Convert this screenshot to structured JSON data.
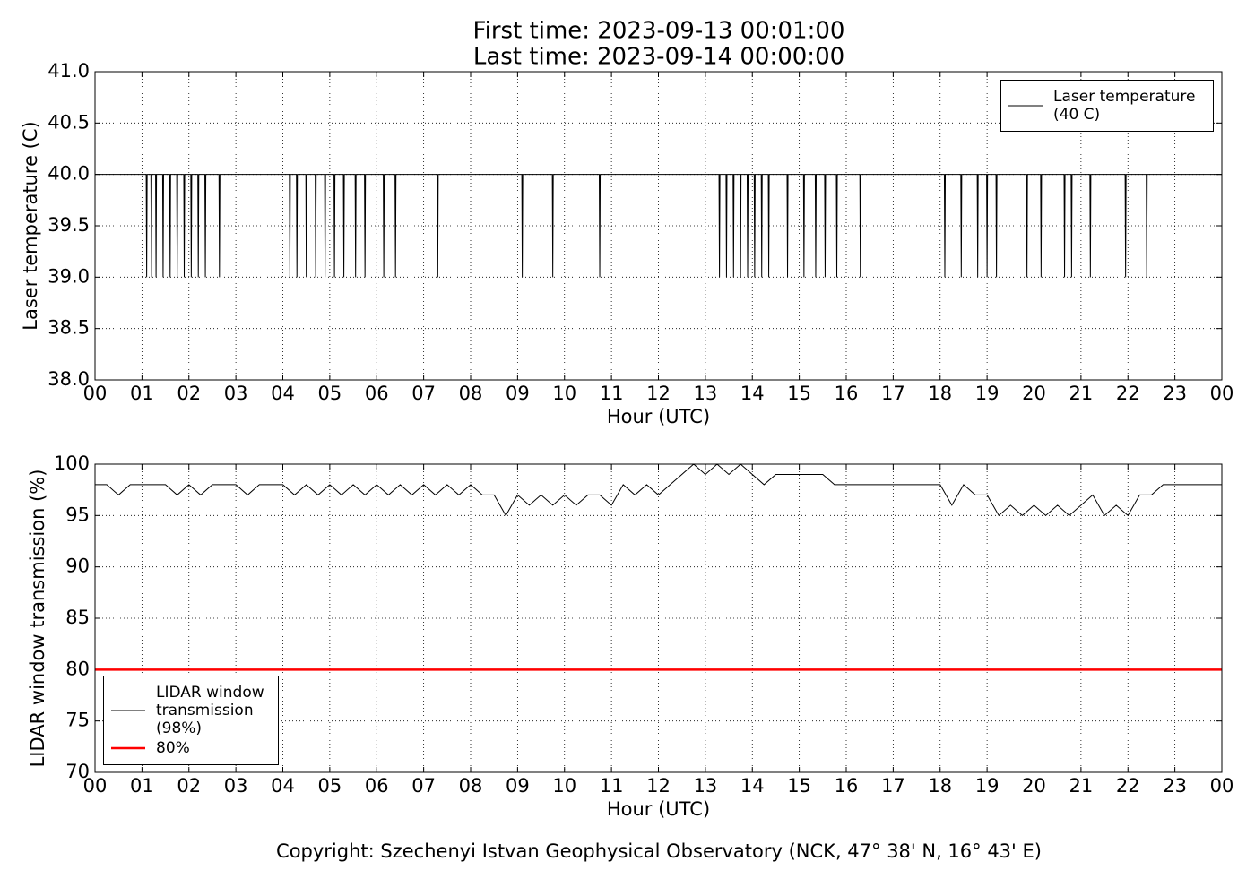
{
  "title": [
    "First time: 2023-09-13 00:01:00",
    "Last time: 2023-09-14 00:00:00"
  ],
  "footer": "Copyright: Szechenyi Istvan Geophysical Observatory (NCK, 47° 38' N, 16° 43' E)",
  "chart_data": [
    {
      "type": "line",
      "ylabel": "Laser temperature (C)",
      "xlabel": "Hour (UTC)",
      "xlim": [
        0,
        24
      ],
      "ylim": [
        38,
        41
      ],
      "grid": true,
      "legend": "upper right",
      "xticks": [
        {
          "value": 0,
          "label": "00"
        },
        {
          "value": 1,
          "label": "01"
        },
        {
          "value": 2,
          "label": "02"
        },
        {
          "value": 3,
          "label": "03"
        },
        {
          "value": 4,
          "label": "04"
        },
        {
          "value": 5,
          "label": "05"
        },
        {
          "value": 6,
          "label": "06"
        },
        {
          "value": 7,
          "label": "07"
        },
        {
          "value": 8,
          "label": "08"
        },
        {
          "value": 9,
          "label": "09"
        },
        {
          "value": 10,
          "label": "10"
        },
        {
          "value": 11,
          "label": "11"
        },
        {
          "value": 12,
          "label": "12"
        },
        {
          "value": 13,
          "label": "13"
        },
        {
          "value": 14,
          "label": "14"
        },
        {
          "value": 15,
          "label": "15"
        },
        {
          "value": 16,
          "label": "16"
        },
        {
          "value": 17,
          "label": "17"
        },
        {
          "value": 18,
          "label": "18"
        },
        {
          "value": 19,
          "label": "19"
        },
        {
          "value": 20,
          "label": "20"
        },
        {
          "value": 21,
          "label": "21"
        },
        {
          "value": 22,
          "label": "22"
        },
        {
          "value": 23,
          "label": "23"
        },
        {
          "value": 24,
          "label": "00"
        }
      ],
      "yticks": [
        {
          "value": 38,
          "label": "38.0"
        },
        38.5,
        {
          "value": 39,
          "label": "39.0"
        },
        39.5,
        {
          "value": 40,
          "label": "40.0"
        },
        40.5,
        {
          "value": 41,
          "label": "41.0"
        }
      ],
      "series": [
        {
          "name": "Laser temperature (40 C)",
          "color": "#000000",
          "width": 1,
          "x": [
            0,
            1.09,
            1.1,
            1.11,
            1.19,
            1.2,
            1.21,
            1.29,
            1.3,
            1.31,
            1.44,
            1.45,
            1.46,
            1.59,
            1.6,
            1.61,
            1.74,
            1.75,
            1.76,
            1.89,
            1.9,
            1.91,
            2.04,
            2.05,
            2.06,
            2.19,
            2.2,
            2.21,
            2.34,
            2.35,
            2.36,
            2.64,
            2.65,
            2.66,
            4.14,
            4.15,
            4.16,
            4.29,
            4.3,
            4.31,
            4.49,
            4.5,
            4.51,
            4.69,
            4.7,
            4.71,
            4.89,
            4.9,
            4.91,
            5.09,
            5.1,
            5.11,
            5.29,
            5.3,
            5.31,
            5.54,
            5.55,
            5.56,
            5.74,
            5.75,
            5.76,
            6.14,
            6.15,
            6.16,
            6.39,
            6.4,
            6.41,
            7.29,
            7.3,
            7.31,
            9.09,
            9.1,
            9.11,
            9.74,
            9.75,
            9.76,
            10.74,
            10.75,
            10.76,
            13.29,
            13.3,
            13.31,
            13.44,
            13.45,
            13.46,
            13.59,
            13.6,
            13.61,
            13.74,
            13.75,
            13.76,
            13.89,
            13.9,
            13.91,
            14.04,
            14.05,
            14.06,
            14.19,
            14.2,
            14.21,
            14.34,
            14.35,
            14.36,
            14.74,
            14.75,
            14.76,
            15.09,
            15.1,
            15.11,
            15.34,
            15.35,
            15.36,
            15.54,
            15.55,
            15.56,
            15.79,
            15.8,
            15.81,
            16.29,
            16.3,
            16.31,
            18.09,
            18.1,
            18.11,
            18.44,
            18.45,
            18.46,
            18.79,
            18.8,
            18.81,
            18.99,
            19,
            19.01,
            19.19,
            19.2,
            19.21,
            19.84,
            19.85,
            19.86,
            20.14,
            20.15,
            20.16,
            20.64,
            20.65,
            20.66,
            20.79,
            20.8,
            20.81,
            21.19,
            21.2,
            21.21,
            21.94,
            21.95,
            21.96,
            22.39,
            22.4,
            22.41,
            24
          ],
          "values": [
            40,
            40,
            39,
            40,
            40,
            39,
            40,
            40,
            39,
            40,
            40,
            39,
            40,
            40,
            39,
            40,
            40,
            39,
            40,
            40,
            39,
            40,
            40,
            39,
            40,
            40,
            39,
            40,
            40,
            39,
            40,
            40,
            39,
            40,
            40,
            39,
            40,
            40,
            39,
            40,
            40,
            39,
            40,
            40,
            39,
            40,
            40,
            39,
            40,
            40,
            39,
            40,
            40,
            39,
            40,
            40,
            39,
            40,
            40,
            39,
            40,
            40,
            39,
            40,
            40,
            39,
            40,
            40,
            39,
            40,
            40,
            39,
            40,
            40,
            39,
            40,
            40,
            39,
            40,
            40,
            39,
            40,
            40,
            39,
            40,
            40,
            39,
            40,
            40,
            39,
            40,
            40,
            39,
            40,
            40,
            39,
            40,
            40,
            39,
            40,
            40,
            39,
            40,
            40,
            39,
            40,
            40,
            39,
            40,
            40,
            39,
            40,
            40,
            39,
            40,
            40,
            39,
            40,
            40,
            39,
            40,
            40,
            39,
            40,
            40,
            39,
            40,
            40,
            39,
            40,
            40,
            39,
            40,
            40,
            39,
            40,
            40,
            39,
            40,
            40,
            39,
            40,
            40,
            39,
            40,
            40,
            39,
            40,
            40,
            39,
            40,
            40,
            39,
            40,
            40,
            39,
            40,
            40
          ]
        }
      ]
    },
    {
      "type": "line",
      "ylabel": "LIDAR window transmission (%)",
      "xlabel": "Hour (UTC)",
      "xlim": [
        0,
        24
      ],
      "ylim": [
        70,
        100
      ],
      "grid": true,
      "legend": "lower left",
      "xticks": [
        {
          "value": 0,
          "label": "00"
        },
        {
          "value": 1,
          "label": "01"
        },
        {
          "value": 2,
          "label": "02"
        },
        {
          "value": 3,
          "label": "03"
        },
        {
          "value": 4,
          "label": "04"
        },
        {
          "value": 5,
          "label": "05"
        },
        {
          "value": 6,
          "label": "06"
        },
        {
          "value": 7,
          "label": "07"
        },
        {
          "value": 8,
          "label": "08"
        },
        {
          "value": 9,
          "label": "09"
        },
        {
          "value": 10,
          "label": "10"
        },
        {
          "value": 11,
          "label": "11"
        },
        {
          "value": 12,
          "label": "12"
        },
        {
          "value": 13,
          "label": "13"
        },
        {
          "value": 14,
          "label": "14"
        },
        {
          "value": 15,
          "label": "15"
        },
        {
          "value": 16,
          "label": "16"
        },
        {
          "value": 17,
          "label": "17"
        },
        {
          "value": 18,
          "label": "18"
        },
        {
          "value": 19,
          "label": "19"
        },
        {
          "value": 20,
          "label": "20"
        },
        {
          "value": 21,
          "label": "21"
        },
        {
          "value": 22,
          "label": "22"
        },
        {
          "value": 23,
          "label": "23"
        },
        {
          "value": 24,
          "label": "00"
        }
      ],
      "yticks": [
        70,
        75,
        80,
        85,
        90,
        95,
        100
      ],
      "series": [
        {
          "name": "LIDAR window transmission (98%)",
          "color": "#000000",
          "width": 1,
          "x": [
            0,
            0.25,
            0.5,
            0.75,
            1,
            1.25,
            1.5,
            1.75,
            2,
            2.25,
            2.5,
            2.75,
            3,
            3.25,
            3.5,
            3.75,
            4,
            4.25,
            4.5,
            4.75,
            5,
            5.25,
            5.5,
            5.75,
            6,
            6.25,
            6.5,
            6.75,
            7,
            7.25,
            7.5,
            7.75,
            8,
            8.25,
            8.5,
            8.75,
            9,
            9.25,
            9.5,
            9.75,
            10,
            10.25,
            10.5,
            10.75,
            11,
            11.25,
            11.5,
            11.75,
            12,
            12.25,
            12.5,
            12.75,
            13,
            13.25,
            13.5,
            13.75,
            14,
            14.25,
            14.5,
            14.75,
            15,
            15.25,
            15.5,
            15.75,
            16,
            16.25,
            16.5,
            16.75,
            17,
            17.25,
            17.5,
            17.75,
            18,
            18.25,
            18.5,
            18.75,
            19,
            19.25,
            19.5,
            19.75,
            20,
            20.25,
            20.5,
            20.75,
            21,
            21.25,
            21.5,
            21.75,
            22,
            22.25,
            22.5,
            22.75,
            23,
            23.25,
            23.5,
            23.75,
            24
          ],
          "values": [
            98,
            98,
            97,
            98,
            98,
            98,
            98,
            97,
            98,
            97,
            98,
            98,
            98,
            97,
            98,
            98,
            98,
            97,
            98,
            97,
            98,
            97,
            98,
            97,
            98,
            97,
            98,
            97,
            98,
            97,
            98,
            97,
            98,
            97,
            97,
            95,
            97,
            96,
            97,
            96,
            97,
            96,
            97,
            97,
            96,
            98,
            97,
            98,
            97,
            98,
            99,
            100,
            99,
            100,
            99,
            100,
            99,
            98,
            99,
            99,
            99,
            99,
            99,
            98,
            98,
            98,
            98,
            98,
            98,
            98,
            98,
            98,
            98,
            96,
            98,
            97,
            97,
            95,
            96,
            95,
            96,
            95,
            96,
            95,
            96,
            97,
            95,
            96,
            95,
            97,
            97,
            98,
            98,
            98,
            98,
            98,
            98
          ]
        },
        {
          "name": "80%",
          "color": "#ff0000",
          "width": 2.5,
          "x": [
            0,
            24
          ],
          "values": [
            80,
            80
          ]
        }
      ]
    }
  ]
}
